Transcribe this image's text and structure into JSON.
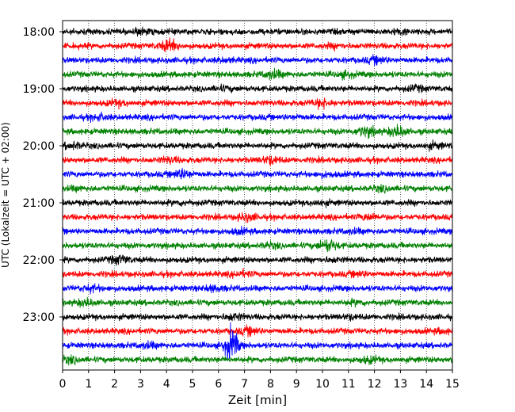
{
  "chart_data": {
    "type": "line",
    "subtype": "helicorder",
    "xlabel": "Zeit  [min]",
    "ylabel": "UTC (Lokalzeit = UTC + 02:00)",
    "xlim": [
      0,
      15
    ],
    "x_ticks": [
      0,
      1,
      2,
      3,
      4,
      5,
      6,
      7,
      8,
      9,
      10,
      11,
      12,
      13,
      14,
      15
    ],
    "y_tick_labels": [
      "18:00",
      "19:00",
      "20:00",
      "21:00",
      "22:00",
      "23:00"
    ],
    "traces_per_hour": 4,
    "minutes_per_trace": 15,
    "trace_colors": [
      "#000000",
      "#ff0000",
      "#0000ff",
      "#008000"
    ],
    "grid": "vertical-dotted",
    "traces": [
      {
        "start": "18:00",
        "events": [
          {
            "t": 3.0,
            "amp": 1.6
          },
          {
            "t": 13.0,
            "amp": 1.5
          }
        ]
      },
      {
        "start": "18:15",
        "events": [
          {
            "t": 4.1,
            "amp": 2.4
          },
          {
            "t": 10.5,
            "amp": 1.4
          }
        ]
      },
      {
        "start": "18:30",
        "events": [
          {
            "t": 12.1,
            "amp": 1.8
          },
          {
            "t": 6.3,
            "amp": 1.3
          }
        ]
      },
      {
        "start": "18:45",
        "events": [
          {
            "t": 8.1,
            "amp": 2.0
          },
          {
            "t": 10.9,
            "amp": 1.6
          }
        ]
      },
      {
        "start": "19:00",
        "events": [
          {
            "t": 6.2,
            "amp": 1.4
          },
          {
            "t": 13.6,
            "amp": 1.5
          }
        ]
      },
      {
        "start": "19:15",
        "events": [
          {
            "t": 2.1,
            "amp": 1.6
          },
          {
            "t": 10.0,
            "amp": 2.0
          }
        ]
      },
      {
        "start": "19:30",
        "events": [
          {
            "t": 1.4,
            "amp": 1.6
          },
          {
            "t": 9.0,
            "amp": 1.3
          }
        ]
      },
      {
        "start": "19:45",
        "events": [
          {
            "t": 11.7,
            "amp": 2.2
          },
          {
            "t": 12.9,
            "amp": 2.4
          }
        ]
      },
      {
        "start": "20:00",
        "events": [
          {
            "t": 0.4,
            "amp": 1.7
          },
          {
            "t": 14.3,
            "amp": 1.6
          }
        ]
      },
      {
        "start": "20:15",
        "events": [
          {
            "t": 4.1,
            "amp": 1.6
          },
          {
            "t": 8.0,
            "amp": 1.9
          }
        ]
      },
      {
        "start": "20:30",
        "events": [
          {
            "t": 4.6,
            "amp": 2.2
          },
          {
            "t": 10.2,
            "amp": 1.4
          }
        ]
      },
      {
        "start": "20:45",
        "events": [
          {
            "t": 0.5,
            "amp": 1.3
          },
          {
            "t": 12.3,
            "amp": 1.5
          }
        ]
      },
      {
        "start": "21:00",
        "events": [
          {
            "t": 4.6,
            "amp": 1.3
          },
          {
            "t": 9.9,
            "amp": 1.4
          }
        ]
      },
      {
        "start": "21:15",
        "events": [
          {
            "t": 7.1,
            "amp": 1.8
          },
          {
            "t": 11.8,
            "amp": 1.7
          }
        ]
      },
      {
        "start": "21:30",
        "events": [
          {
            "t": 6.8,
            "amp": 1.5
          },
          {
            "t": 11.2,
            "amp": 1.4
          }
        ]
      },
      {
        "start": "21:45",
        "events": [
          {
            "t": 10.2,
            "amp": 2.6
          },
          {
            "t": 8.0,
            "amp": 1.5
          }
        ]
      },
      {
        "start": "22:00",
        "events": [
          {
            "t": 2.2,
            "amp": 2.0
          },
          {
            "t": 10.4,
            "amp": 1.3
          }
        ]
      },
      {
        "start": "22:15",
        "events": [
          {
            "t": 6.9,
            "amp": 1.6
          },
          {
            "t": 11.4,
            "amp": 1.5
          }
        ]
      },
      {
        "start": "22:30",
        "events": [
          {
            "t": 1.1,
            "amp": 1.7
          },
          {
            "t": 5.8,
            "amp": 1.6
          }
        ]
      },
      {
        "start": "22:45",
        "events": [
          {
            "t": 0.9,
            "amp": 1.8
          },
          {
            "t": 11.3,
            "amp": 1.4
          }
        ]
      },
      {
        "start": "23:00",
        "events": [
          {
            "t": 6.6,
            "amp": 1.8
          },
          {
            "t": 11.1,
            "amp": 1.4
          }
        ]
      },
      {
        "start": "23:15",
        "events": [
          {
            "t": 7.2,
            "amp": 1.9
          },
          {
            "t": 14.6,
            "amp": 1.4
          }
        ]
      },
      {
        "start": "23:30",
        "events": [
          {
            "t": 6.5,
            "amp": 6.0
          },
          {
            "t": 3.3,
            "amp": 1.6
          }
        ]
      },
      {
        "start": "23:45",
        "events": [
          {
            "t": 0.3,
            "amp": 1.7
          },
          {
            "t": 11.8,
            "amp": 1.7
          }
        ]
      }
    ]
  }
}
